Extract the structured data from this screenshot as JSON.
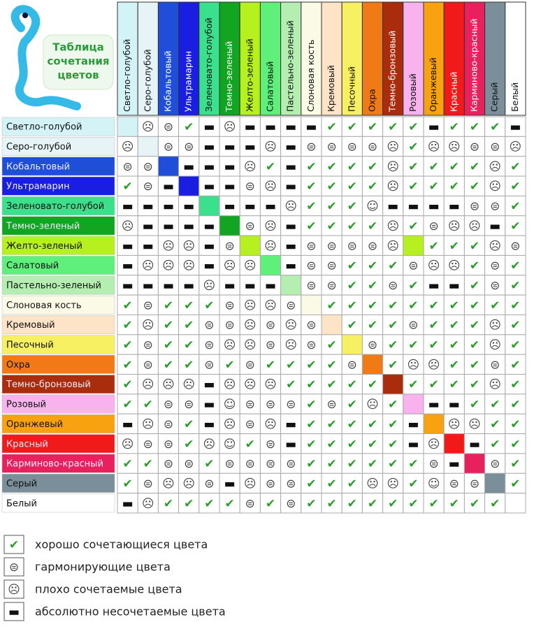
{
  "header": {
    "title": [
      "Таблица",
      "сочетания",
      "цветов"
    ]
  },
  "table": {
    "columns": [
      "Светло-голубой",
      "Серо-голубой",
      "Кобальтовый",
      "Ультрамарин",
      "Зеленовато-голубой",
      "Темно-зеленый",
      "Желто-зеленый",
      "Салатовый",
      "Пастельно-зеленый",
      "Слоновая кость",
      "Кремовый",
      "Песочный",
      "Охра",
      "Темно-бронзовый",
      "Розовый",
      "Оранжевый",
      "Красный",
      "Карминово-красный",
      "Серый",
      "Белый"
    ],
    "colors": [
      "#d4f3f6",
      "#e6f3f7",
      "#1f4fd8",
      "#1a1ee0",
      "#3ae08c",
      "#12a522",
      "#b6f01e",
      "#5ff07c",
      "#b4eeb0",
      "#fafae6",
      "#fde4c6",
      "#f7f062",
      "#f07a16",
      "#a92c0c",
      "#f8b2ee",
      "#f8a212",
      "#f01a1a",
      "#e8205e",
      "#7a8f99",
      "#ffffff"
    ],
    "rows": [
      {
        "label": "Светло-голубой",
        "cells": [
          null,
          "☹",
          "⊜",
          "✔",
          "▬",
          "☹",
          "▬",
          "▬",
          "▬",
          "▬",
          "✔",
          "✔",
          "✔",
          "✔",
          "✔",
          "▬",
          "✔",
          "✔",
          "✔",
          "▬"
        ]
      },
      {
        "label": "Серо-голубой",
        "cells": [
          "☹",
          null,
          "⊜",
          "⊜",
          "▬",
          "▬",
          "▬",
          "☹",
          "▬",
          "⊜",
          "⊜",
          "⊜",
          "⊜",
          "☹",
          "✔",
          "☹",
          "☹",
          "⊜",
          "⊜",
          "☹"
        ]
      },
      {
        "label": "Кобальтовый",
        "cells": [
          "⊜",
          "⊜",
          null,
          "▬",
          "▬",
          "▬",
          "☹",
          "✔",
          "▬",
          "✔",
          "✔",
          "✔",
          "✔",
          "☹",
          "✔",
          "✔",
          "✔",
          "✔",
          "☹",
          "✔"
        ]
      },
      {
        "label": "Ультрамарин",
        "cells": [
          "✔",
          "⊜",
          "▬",
          null,
          "▬",
          "▬",
          "⊜",
          "☹",
          "▬",
          "✔",
          "✔",
          "✔",
          "✔",
          "☹",
          "✔",
          "✔",
          "✔",
          "✔",
          "☹",
          "✔"
        ]
      },
      {
        "label": "Зеленовато-голубой",
        "cells": [
          "▬",
          "▬",
          "▬",
          "▬",
          null,
          "▬",
          "▬",
          "▬",
          "☹",
          "✔",
          "✔",
          "✔",
          "☺",
          "▬",
          "▬",
          "▬",
          "▬",
          "⊜",
          "⊜",
          "✔"
        ]
      },
      {
        "label": "Темно-зеленый",
        "cells": [
          "☹",
          "▬",
          "▬",
          "▬",
          "▬",
          null,
          "⊜",
          "☹",
          "▬",
          "✔",
          "✔",
          "✔",
          "✔",
          "☹",
          "✔",
          "⊜",
          "☹",
          "☹",
          "▬",
          "✔"
        ]
      },
      {
        "label": "Желто-зеленый",
        "cells": [
          "▬",
          "▬",
          "☹",
          "☹",
          "▬",
          "⊜",
          null,
          "☹",
          "▬",
          "⊜",
          "⊜",
          "⊜",
          "⊜",
          "☹",
          null,
          "✔",
          "✔",
          "✔",
          "☹",
          "⊜"
        ]
      },
      {
        "label": "Салатовый",
        "cells": [
          "▬",
          "☹",
          "☹",
          "☹",
          "▬",
          "☹",
          "☹",
          null,
          "▬",
          "⊜",
          "⊜",
          "✔",
          "✔",
          "✔",
          "⊜",
          "☹",
          "☹",
          "✔",
          "⊜",
          "✔"
        ]
      },
      {
        "label": "Пастельно-зеленый",
        "cells": [
          "▬",
          "▬",
          "▬",
          "▬",
          "☹",
          "▬",
          "▬",
          "▬",
          null,
          "⊜",
          "⊜",
          "✔",
          "✔",
          "⊜",
          "✔",
          "▬",
          "▬",
          "✔",
          "⊜",
          "✔"
        ]
      },
      {
        "label": "Слоновая кость",
        "cells": [
          "✔",
          "⊜",
          "✔",
          "✔",
          "✔",
          "⊜",
          "☹",
          "☹",
          "⊜",
          null,
          "✔",
          "✔",
          "✔",
          "✔",
          "✔",
          "✔",
          "✔",
          "✔",
          "✔",
          "✔"
        ]
      },
      {
        "label": "Кремовый",
        "cells": [
          "✔",
          "☹",
          "✔",
          "✔",
          "⊜",
          "⊜",
          "☹",
          "⊜",
          "☹",
          "⊜",
          null,
          "✔",
          "✔",
          "✔",
          "⊜",
          "✔",
          "✔",
          "✔",
          "☹",
          "✔"
        ]
      },
      {
        "label": "Песочный",
        "cells": [
          "✔",
          "⊜",
          "✔",
          "✔",
          "⊜",
          "☹",
          "☹",
          "⊜",
          "☹",
          "⊜",
          "✔",
          null,
          "⊜",
          "✔",
          "✔",
          "✔",
          "✔",
          "✔",
          "☹",
          "✔"
        ]
      },
      {
        "label": "Охра",
        "cells": [
          "✔",
          "⊜",
          "✔",
          "✔",
          "⊜",
          "✔",
          "⊜",
          "✔",
          "✔",
          "✔",
          "✔",
          "⊜",
          null,
          "✔",
          "☹",
          "☹",
          "✔",
          "✔",
          "⊜",
          "✔"
        ]
      },
      {
        "label": "Темно-бронзовый",
        "cells": [
          "✔",
          "☹",
          "☹",
          "☹",
          "▬",
          "☹",
          "☹",
          "☹",
          "✔",
          "✔",
          "✔",
          "✔",
          "✔",
          null,
          "✔",
          "✔",
          "✔",
          "✔",
          "☹",
          "✔"
        ]
      },
      {
        "label": "Розовый",
        "cells": [
          "✔",
          "✔",
          "⊜",
          "⊜",
          "▬",
          "☺",
          "⊜",
          "⊜",
          "⊜",
          "✔",
          "⊜",
          "✔",
          "☹",
          "✔",
          null,
          "▬",
          "▬",
          "✔",
          "✔",
          "✔"
        ]
      },
      {
        "label": "Оранжевый",
        "cells": [
          "▬",
          "☹",
          "⊜",
          "✔",
          "▬",
          "☹",
          "⊜",
          "☹",
          "▬",
          "✔",
          "✔",
          "✔",
          "✔",
          "✔",
          "▬",
          null,
          "☹",
          "☹",
          "✔",
          "✔"
        ]
      },
      {
        "label": "Красный",
        "cells": [
          "☹",
          "⊜",
          "⊜",
          "✔",
          "☹",
          "☺",
          "✔",
          "⊜",
          "▬",
          "✔",
          "✔",
          "✔",
          "✔",
          "✔",
          "▬",
          "☹",
          null,
          "▬",
          "✔",
          "✔"
        ]
      },
      {
        "label": "Карминово-красный",
        "cells": [
          "✔",
          "✔",
          "⊜",
          "⊜",
          "✔",
          "⊜",
          "⊜",
          "⊜",
          "⊜",
          "✔",
          "✔",
          "✔",
          "✔",
          "✔",
          "✔",
          "⊜",
          "▬",
          null,
          "⊜",
          "✔"
        ]
      },
      {
        "label": "Серый",
        "cells": [
          "✔",
          "⊜",
          "☹",
          "☹",
          "⊜",
          "▬",
          "☹",
          "⊜",
          "⊜",
          "✔",
          "✔",
          "✔",
          "☹",
          "☹",
          "✔",
          "☺",
          "⊜",
          "⊜",
          null,
          "✔"
        ]
      },
      {
        "label": "Белый",
        "cells": [
          "▬",
          "☹",
          "✔",
          "✔",
          "✔",
          "✔",
          "⊜",
          "✔",
          "⊜",
          "✔",
          "✔",
          "✔",
          "✔",
          "✔",
          "✔",
          "✔",
          "✔",
          "✔",
          "✔",
          null
        ]
      }
    ]
  },
  "legend": [
    {
      "icon": "✔",
      "label": "хорошо сочетающиеся цвета"
    },
    {
      "icon": "⊜",
      "label": "гармонирующие цвета"
    },
    {
      "icon": "☹",
      "label": "плохо сочетаемые цвета"
    },
    {
      "icon": "▬",
      "label": "абсолютно несочетаемые цвета"
    }
  ]
}
